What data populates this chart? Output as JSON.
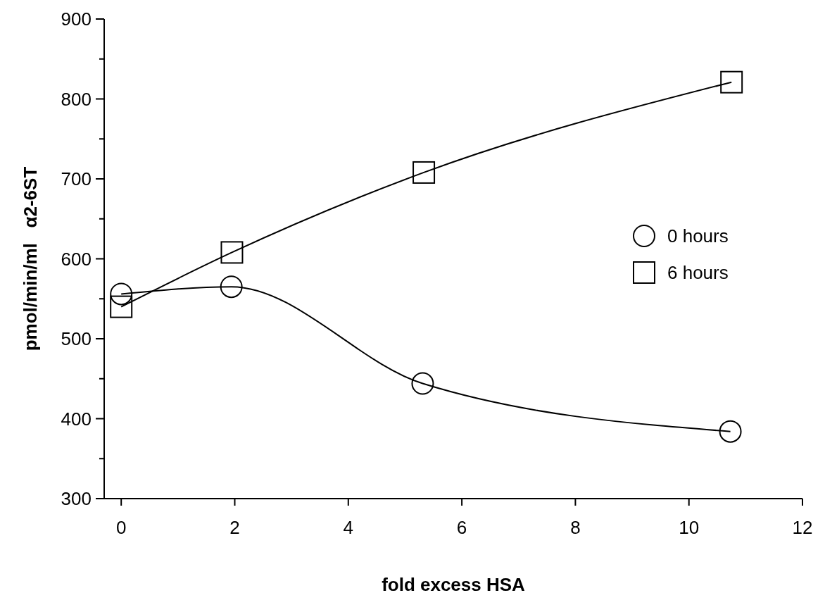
{
  "chart_data": {
    "type": "line",
    "xlabel": "fold  excess  HSA",
    "ylabel": "pmol/min/ml   α2-6ST",
    "xlim": [
      -0.3,
      12
    ],
    "xticks": [
      0,
      2,
      4,
      6,
      8,
      10,
      12
    ],
    "ylim": [
      300,
      900
    ],
    "yticks": [
      300,
      {
        "value": 350,
        "label": null
      },
      400,
      {
        "value": 450,
        "label": null
      },
      500,
      {
        "value": 550,
        "label": null
      },
      600,
      {
        "value": 650,
        "label": null
      },
      700,
      {
        "value": 750,
        "label": null
      },
      800,
      {
        "value": 850,
        "label": null
      },
      900
    ],
    "legend": "right",
    "grid": false,
    "series": [
      {
        "name": "0 hours",
        "color": "#000000",
        "marker": "circle",
        "x": [
          0,
          1.94,
          5.31,
          10.73
        ],
        "values": [
          556,
          565,
          444,
          384
        ]
      },
      {
        "name": "6 hours",
        "color": "#000000",
        "marker": "square",
        "x": [
          0,
          1.95,
          5.33,
          10.75
        ],
        "values": [
          540,
          608,
          708,
          821
        ]
      }
    ]
  }
}
